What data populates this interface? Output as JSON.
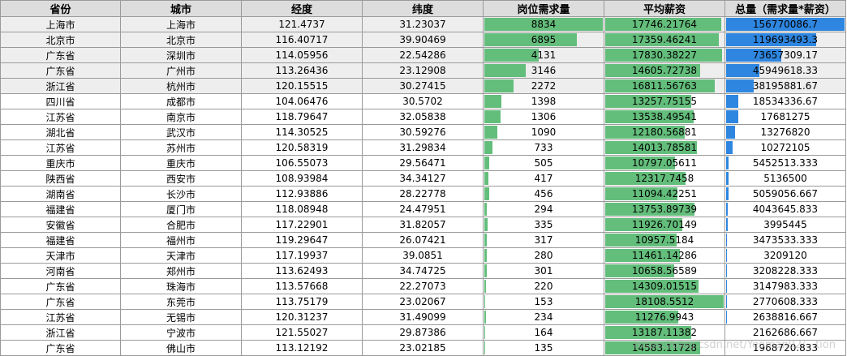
{
  "headers": [
    "省份",
    "城市",
    "经度",
    "纬度",
    "岗位需求量",
    "平均薪资",
    "总量（需求量*薪资）"
  ],
  "rows": [
    [
      "上海市",
      "上海市",
      "121.4737",
      "31.23037",
      "8834",
      "17746.21764",
      "156770086.7"
    ],
    [
      "北京市",
      "北京市",
      "116.40717",
      "39.90469",
      "6895",
      "17359.46241",
      "119693493.3"
    ],
    [
      "广东省",
      "深圳市",
      "114.05956",
      "22.54286",
      "4131",
      "17830.38227",
      "73657309.17"
    ],
    [
      "广东省",
      "广州市",
      "113.26436",
      "23.12908",
      "3146",
      "14605.72738",
      "45949618.33"
    ],
    [
      "浙江省",
      "杭州市",
      "120.15515",
      "30.27415",
      "2272",
      "16811.56763",
      "38195881.67"
    ],
    [
      "四川省",
      "成都市",
      "104.06476",
      "30.5702",
      "1398",
      "13257.75155",
      "18534336.67"
    ],
    [
      "江苏省",
      "南京市",
      "118.79647",
      "32.05838",
      "1306",
      "13538.49541",
      "17681275"
    ],
    [
      "湖北省",
      "武汉市",
      "114.30525",
      "30.59276",
      "1090",
      "12180.56881",
      "13276820"
    ],
    [
      "江苏省",
      "苏州市",
      "120.58319",
      "31.29834",
      "733",
      "14013.78581",
      "10272105"
    ],
    [
      "重庆市",
      "重庆市",
      "106.55073",
      "29.56471",
      "505",
      "10797.05611",
      "5452513.333"
    ],
    [
      "陕西省",
      "西安市",
      "108.93984",
      "34.34127",
      "417",
      "12317.7458",
      "5136500"
    ],
    [
      "湖南省",
      "长沙市",
      "112.93886",
      "28.22778",
      "456",
      "11094.42251",
      "5059056.667"
    ],
    [
      "福建省",
      "厦门市",
      "118.08948",
      "24.47951",
      "294",
      "13753.89739",
      "4043645.833"
    ],
    [
      "安徽省",
      "合肥市",
      "117.22901",
      "31.82057",
      "335",
      "11926.70149",
      "3995445"
    ],
    [
      "福建省",
      "福州市",
      "119.29647",
      "26.07421",
      "317",
      "10957.5184",
      "3473533.333"
    ],
    [
      "天津市",
      "天津市",
      "117.19937",
      "39.0851",
      "280",
      "11461.14286",
      "3209120"
    ],
    [
      "河南省",
      "郑州市",
      "113.62493",
      "34.74725",
      "301",
      "10658.56589",
      "3208228.333"
    ],
    [
      "广东省",
      "珠海市",
      "113.57668",
      "22.27073",
      "220",
      "14309.01515",
      "3147983.333"
    ],
    [
      "广东省",
      "东莞市",
      "113.75179",
      "23.02067",
      "153",
      "18108.5512",
      "2770608.333"
    ],
    [
      "江苏省",
      "无锡市",
      "120.31237",
      "31.49099",
      "234",
      "11276.9943",
      "2638816.667"
    ],
    [
      "浙江省",
      "宁波市",
      "121.55027",
      "29.87386",
      "164",
      "13187.11382",
      "2162686.667"
    ],
    [
      "广东省",
      "佛山市",
      "113.12192",
      "23.02185",
      "135",
      "14583.11728",
      "1968720.833"
    ]
  ],
  "databar_colors": {
    "demand": "#63be7b",
    "salary": "#63be7b",
    "total": "#2e86e0"
  },
  "databar_max": {
    "demand": 8834,
    "salary": 18108.5512,
    "total": 156770086.7
  },
  "shaded_rows": [
    0,
    1,
    2,
    3,
    4
  ],
  "watermark": "https://blog.csdn.net/Yeoman92/...tion"
}
